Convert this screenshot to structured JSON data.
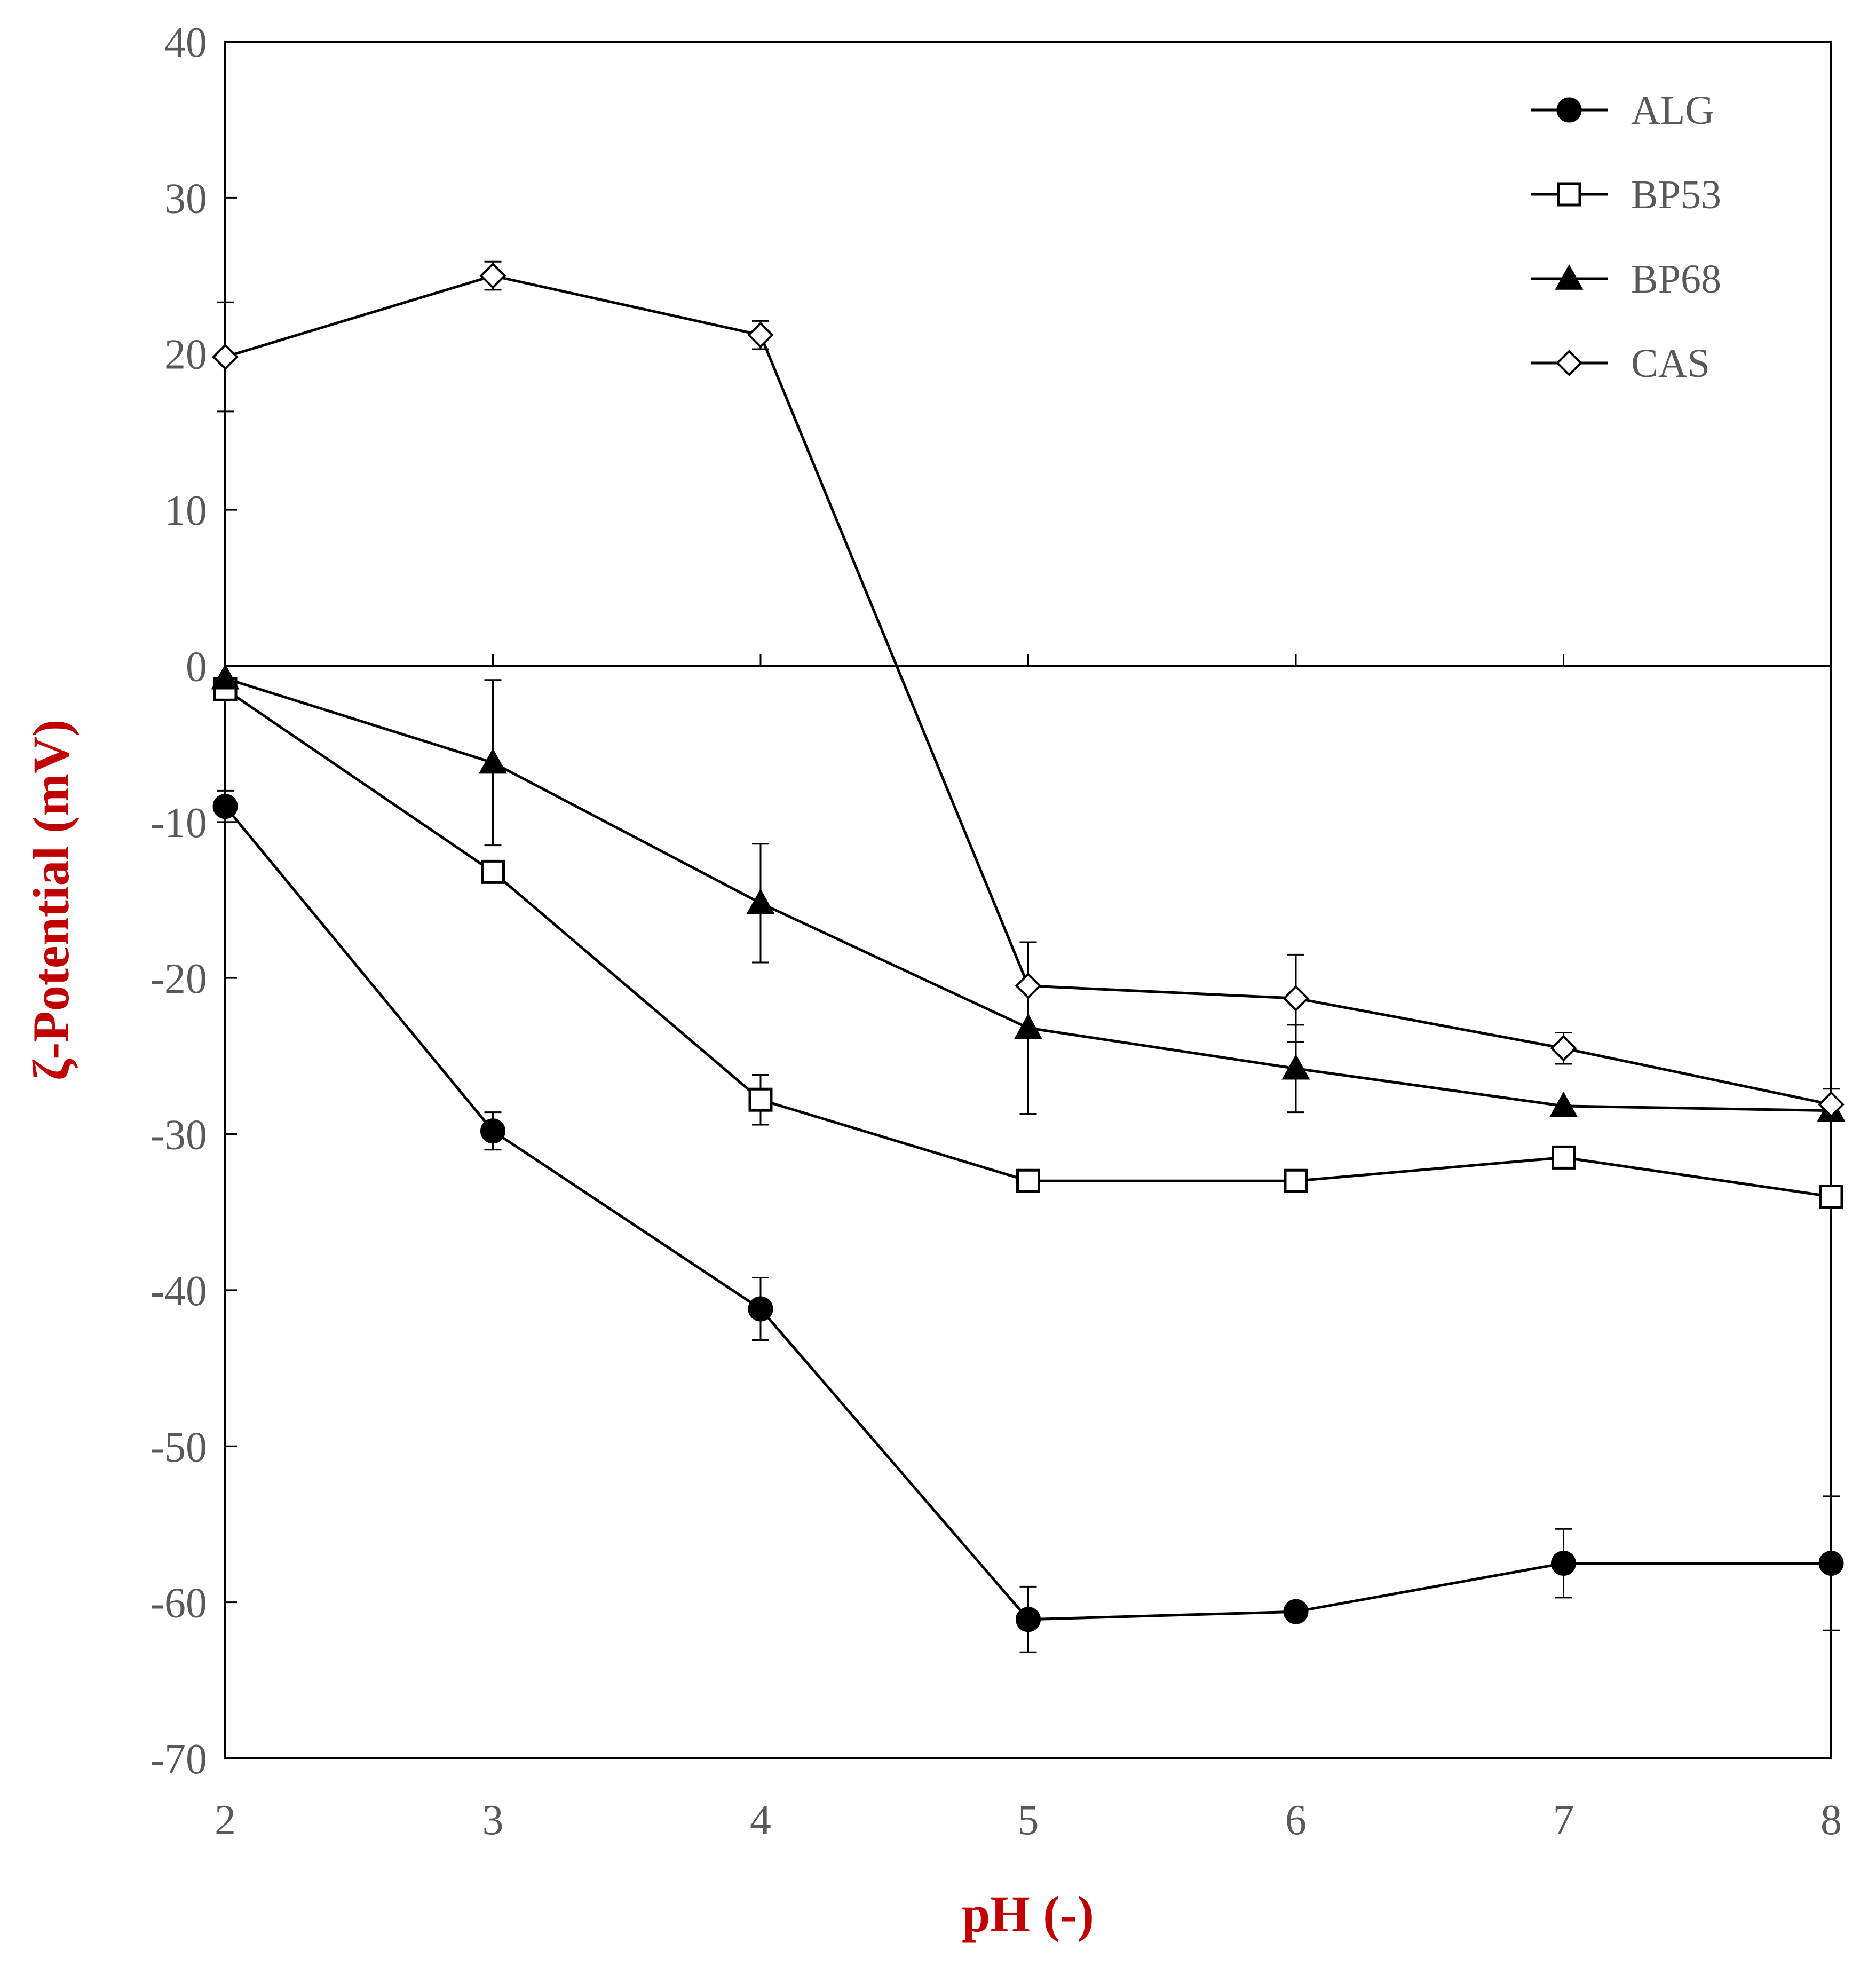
{
  "chart_data": {
    "type": "line",
    "title": "",
    "xlabel": "pH (-)",
    "ylabel": "ζ-Potential (mV)",
    "xlim": [
      2,
      8
    ],
    "ylim": [
      -70,
      40
    ],
    "x_ticks": [
      2,
      3,
      4,
      5,
      6,
      7,
      8
    ],
    "y_ticks": [
      40,
      30,
      20,
      10,
      0,
      -10,
      -20,
      -30,
      -40,
      -50,
      -60,
      -70
    ],
    "grid": false,
    "legend_position": "top-right",
    "series": [
      {
        "name": "ALG",
        "marker": "filled-circle",
        "x": [
          2,
          3,
          4,
          5,
          6,
          7,
          8
        ],
        "y": [
          -9.0,
          -29.8,
          -41.2,
          -61.1,
          -60.6,
          -57.5,
          -57.5
        ],
        "err": [
          1.0,
          1.2,
          2.0,
          2.1,
          0.0,
          2.2,
          4.3
        ]
      },
      {
        "name": "BP53",
        "marker": "open-square",
        "x": [
          2,
          3,
          4,
          5,
          6,
          7,
          8
        ],
        "y": [
          -1.5,
          -13.2,
          -27.8,
          -33.0,
          -33.0,
          -31.5,
          -34.0
        ],
        "err": [
          0.0,
          0.0,
          1.6,
          0.0,
          0.0,
          0.0,
          0.0
        ]
      },
      {
        "name": "BP68",
        "marker": "filled-triangle",
        "x": [
          2,
          3,
          4,
          5,
          6,
          7,
          8
        ],
        "y": [
          -0.8,
          -6.2,
          -15.2,
          -23.2,
          -25.8,
          -28.2,
          -28.5
        ],
        "err": [
          0.0,
          5.3,
          3.8,
          5.5,
          2.8,
          0.0,
          0.0
        ]
      },
      {
        "name": "CAS",
        "marker": "open-diamond",
        "x": [
          2,
          3,
          4,
          5,
          6,
          7,
          8
        ],
        "y": [
          19.8,
          25.0,
          21.2,
          -20.5,
          -21.3,
          -24.5,
          -28.1
        ],
        "err": [
          3.5,
          0.9,
          0.9,
          2.8,
          2.8,
          1.0,
          1.0
        ]
      }
    ]
  }
}
